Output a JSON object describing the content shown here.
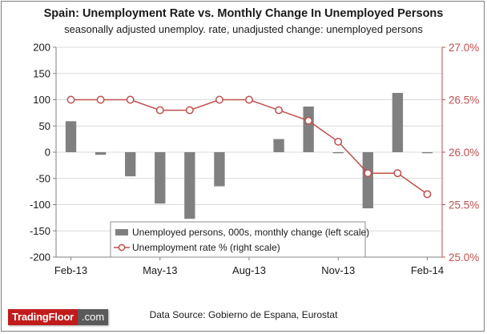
{
  "title": "Spain: Unemployment Rate vs. Monthly Change In Unemployed Persons",
  "subtitle": "seasonally adjusted unemploy. rate, unadjusted change: unemployed persons",
  "source": "Data Source: Gobierno de Espana, Eurostat",
  "logo": {
    "main": "TradingFloor",
    "suffix": ".com"
  },
  "colors": {
    "bar": "#808080",
    "line": "#c0504d",
    "marker_fill": "#ffffff",
    "grid": "#d9d9d9",
    "right_axis_text": "#c0504d"
  },
  "chart_data": {
    "type": "bar",
    "x_tick_labels": [
      "Feb-13",
      "May-13",
      "Aug-13",
      "Nov-13",
      "Feb-14"
    ],
    "categories": [
      "Feb-13",
      "Mar-13",
      "Apr-13",
      "May-13",
      "Jun-13",
      "Jul-13",
      "Aug-13",
      "Sep-13",
      "Oct-13",
      "Nov-13",
      "Dec-13",
      "Jan-14",
      "Feb-14"
    ],
    "series": [
      {
        "name": "Unemployed persons, 000s, monthly change (left scale)",
        "type": "bar",
        "axis": "left",
        "values": [
          59,
          -5,
          -46,
          -98,
          -127,
          -65,
          0,
          25,
          87,
          -2,
          -107,
          113,
          -2
        ]
      },
      {
        "name": "Unemployment rate % (right scale)",
        "type": "line",
        "axis": "right",
        "values": [
          26.5,
          26.5,
          26.5,
          26.4,
          26.4,
          26.5,
          26.5,
          26.4,
          26.3,
          26.1,
          25.8,
          25.8,
          25.6
        ]
      }
    ],
    "y_left": {
      "ylim": [
        -200,
        200
      ],
      "ticks": [
        "200",
        "150",
        "100",
        "50",
        "0",
        "-50",
        "-100",
        "-150",
        "-200"
      ]
    },
    "y_right": {
      "ylim": [
        25.0,
        27.0
      ],
      "ticks": [
        "27.0%",
        "26.5%",
        "26.0%",
        "25.5%",
        "25.0%"
      ]
    },
    "grid": "horizontal",
    "legend_position": "bottom-center"
  }
}
